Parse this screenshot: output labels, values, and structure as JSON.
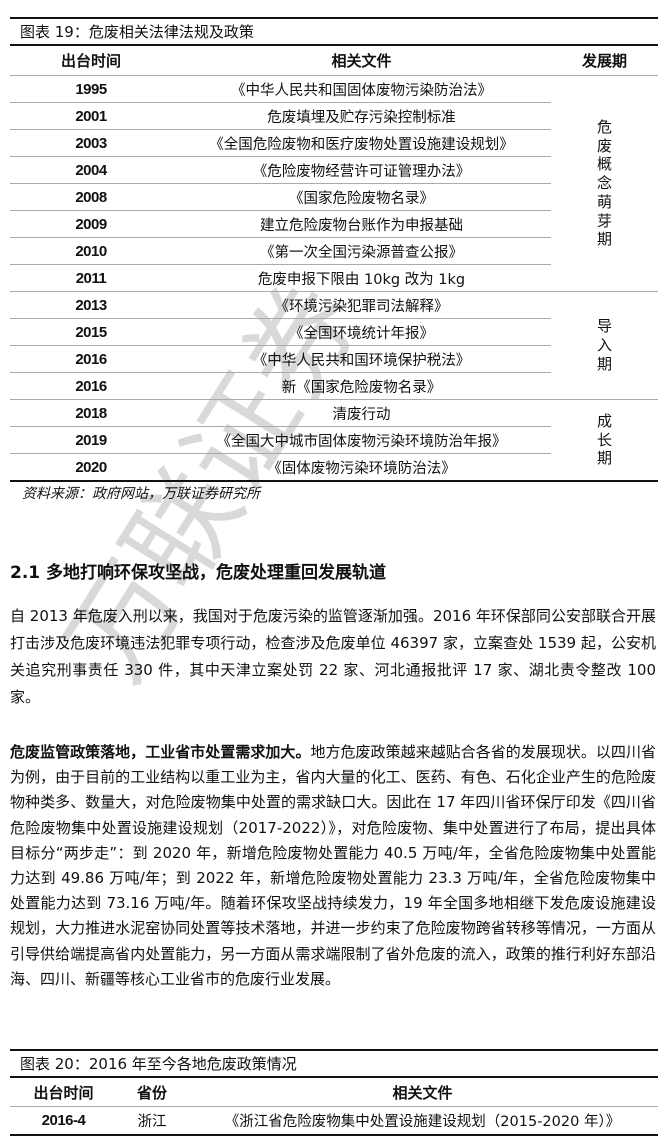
{
  "figure19": {
    "title": "图表 19：危废相关法律法规及政策",
    "headers": [
      "出台时间",
      "相关文件",
      "发展期"
    ],
    "rows": [
      {
        "year": "1995",
        "doc": "《中华人民共和国固体废物污染防治法》"
      },
      {
        "year": "2001",
        "doc": "危废填埋及贮存污染控制标准"
      },
      {
        "year": "2003",
        "doc": "《全国危险废物和医疗废物处置设施建设规划》"
      },
      {
        "year": "2004",
        "doc": "《危险废物经营许可证管理办法》"
      },
      {
        "year": "2008",
        "doc": "《国家危险废物名录》"
      },
      {
        "year": "2009",
        "doc": "建立危险废物台账作为申报基础"
      },
      {
        "year": "2010",
        "doc": "《第一次全国污染源普查公报》"
      },
      {
        "year": "2011",
        "doc": "危废申报下限由 10kg 改为 1kg"
      },
      {
        "year": "2013",
        "doc": "《环境污染犯罪司法解释》"
      },
      {
        "year": "2015",
        "doc": "《全国环境统计年报》"
      },
      {
        "year": "2016",
        "doc": "《中华人民共和国环境保护税法》"
      },
      {
        "year": "2016",
        "doc": "新《国家危险废物名录》"
      },
      {
        "year": "2018",
        "doc": "清废行动"
      },
      {
        "year": "2019",
        "doc": "《全国大中城市固体废物污染环境防治年报》"
      },
      {
        "year": "2020",
        "doc": "《固体废物污染环境防治法》"
      }
    ],
    "periods": [
      "危废概念萌芽期",
      "导入期",
      "成长期"
    ],
    "source": "资料来源：政府网站，万联证券研究所"
  },
  "section": {
    "heading": "2.1  多地打响环保攻坚战，危废处理重回发展轨道",
    "para1": "自 2013 年危废入刑以来，我国对于危废污染的监管逐渐加强。2016 年环保部同公安部联合开展打击涉及危废环境违法犯罪专项行动，检查涉及危废单位 46397 家，立案查处 1539 起，公安机关追究刑事责任 330 件，其中天津立案处罚 22 家、河北通报批评 17 家、湖北责令整改 100 家。",
    "para2_lead": "危废监管政策落地，工业省市处置需求加大。",
    "para2_body": "地方危废政策越来越贴合各省的发展现状。以四川省为例，由于目前的工业结构以重工业为主，省内大量的化工、医药、有色、石化企业产生的危险废物种类多、数量大，对危险废物集中处置的需求缺口大。因此在 17 年四川省环保厅印发《四川省危险废物集中处置设施建设规划（2017-2022）》，对危险废物、集中处置进行了布局，提出具体目标分“两步走”：到 2020 年，新增危险废物处置能力 40.5 万吨/年，全省危险废物集中处置能力达到 49.86 万吨/年；到 2022 年，新增危险废物处置能力 23.3 万吨/年，全省危险废物集中处置能力达到 73.16 万吨/年。随着环保攻坚战持续发力，19 年全国多地相继下发危废设施建设规划，大力推进水泥窑协同处置等技术落地，并进一步约束了危险废物跨省转移等情况，一方面从引导供给端提高省内处置能力，另一方面从需求端限制了省外危废的流入，政策的推行利好东部沿海、四川、新疆等核心工业省市的危废行业发展。"
  },
  "figure20": {
    "title": "图表 20：2016 年至今各地危废政策情况",
    "headers": [
      "出台时间",
      "省份",
      "相关文件"
    ],
    "rows": [
      {
        "date": "2016-4",
        "province": "浙江",
        "doc": "《浙江省危险废物集中处置设施建设规划（2015-2020 年）》"
      }
    ]
  },
  "watermark": "万联证券"
}
